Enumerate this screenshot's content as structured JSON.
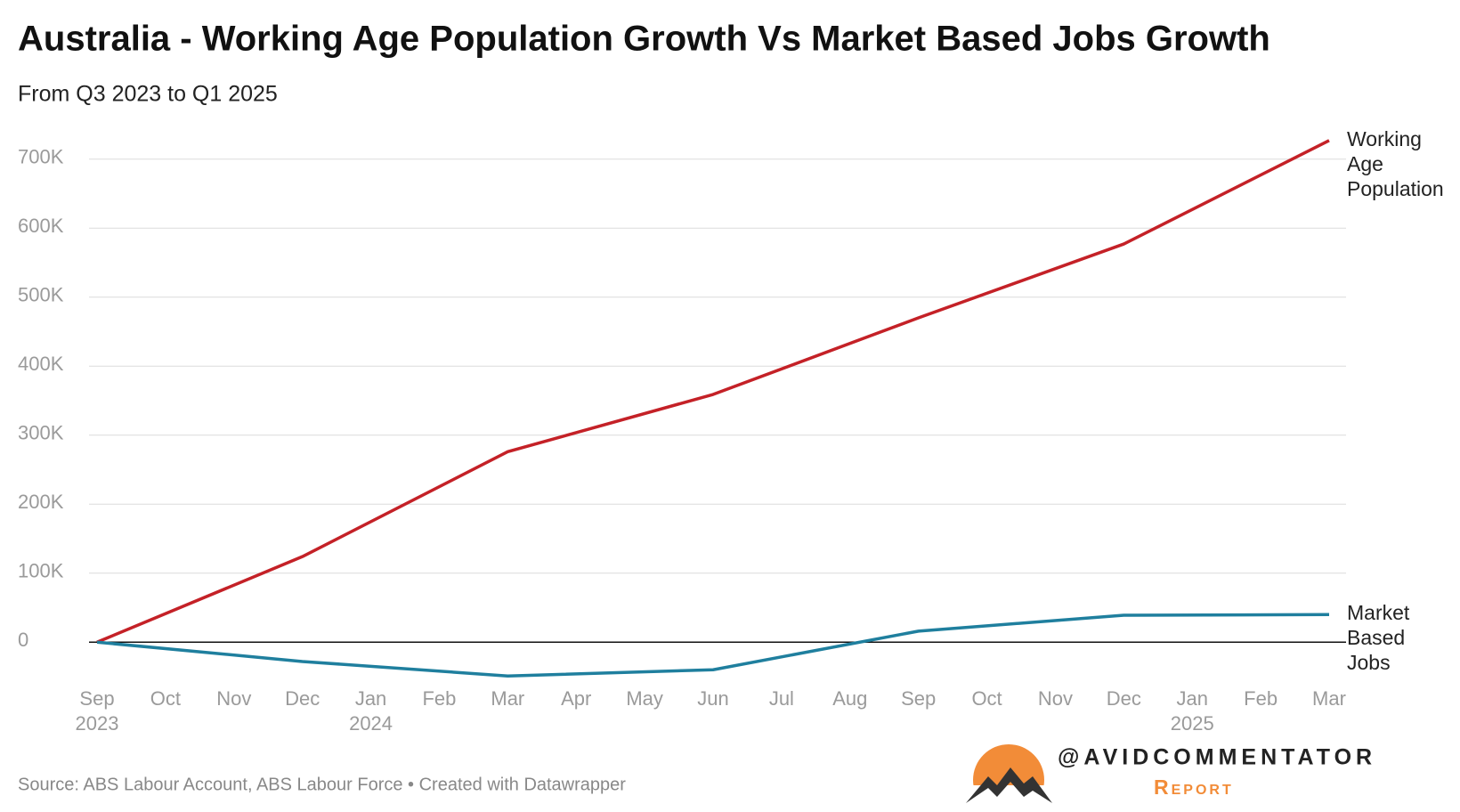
{
  "chart_data": {
    "type": "line",
    "title": "Australia - Working Age Population Growth Vs Market Based Jobs Growth",
    "subtitle": "From Q3 2023 to Q1 2025",
    "source": "Source: ABS Labour Account, ABS Labour Force • Created with Datawrapper",
    "brand": "@AVIDCOMMENTATOR",
    "brand_sub": "Report",
    "x": [
      "2023-09",
      "2023-12",
      "2024-03",
      "2024-06",
      "2024-09",
      "2024-12",
      "2025-03"
    ],
    "series": [
      {
        "name": "Working Age Population",
        "color": "#c42127",
        "values": [
          0,
          124000,
          276000,
          359000,
          470000,
          577000,
          727000
        ]
      },
      {
        "name": "Market Based Jobs",
        "color": "#1f7f9e",
        "values": [
          0,
          -28000,
          -49000,
          -40000,
          16000,
          39000,
          40000
        ]
      }
    ],
    "xlim": [
      "2023-09",
      "2025-03"
    ],
    "xticks": [
      {
        "value": "2023-09",
        "label": "Sep"
      },
      {
        "value": "2023-10",
        "label": "Oct"
      },
      {
        "value": "2023-11",
        "label": "Nov"
      },
      {
        "value": "2023-12",
        "label": "Dec"
      },
      {
        "value": "2024-01",
        "label": "Jan"
      },
      {
        "value": "2024-02",
        "label": "Feb"
      },
      {
        "value": "2024-03",
        "label": "Mar"
      },
      {
        "value": "2024-04",
        "label": "Apr"
      },
      {
        "value": "2024-05",
        "label": "May"
      },
      {
        "value": "2024-06",
        "label": "Jun"
      },
      {
        "value": "2024-07",
        "label": "Jul"
      },
      {
        "value": "2024-08",
        "label": "Aug"
      },
      {
        "value": "2024-09",
        "label": "Sep"
      },
      {
        "value": "2024-10",
        "label": "Oct"
      },
      {
        "value": "2024-11",
        "label": "Nov"
      },
      {
        "value": "2024-12",
        "label": "Dec"
      },
      {
        "value": "2025-01",
        "label": "Jan"
      },
      {
        "value": "2025-02",
        "label": "Feb"
      },
      {
        "value": "2025-03",
        "label": "Mar"
      }
    ],
    "xyears": [
      {
        "value": "2023-09",
        "label": "2023"
      },
      {
        "value": "2024-01",
        "label": "2024"
      },
      {
        "value": "2025-01",
        "label": "2025"
      }
    ],
    "ylim": [
      -50000,
      750000
    ],
    "yticks": [
      0,
      {
        "value": 100000,
        "label": "100K"
      },
      {
        "value": 200000,
        "label": "200K"
      },
      {
        "value": 300000,
        "label": "300K"
      },
      {
        "value": 400000,
        "label": "400K"
      },
      {
        "value": 500000,
        "label": "500K"
      },
      {
        "value": 600000,
        "label": "600K"
      },
      {
        "value": 700000,
        "label": "700K"
      }
    ],
    "grid": true
  }
}
